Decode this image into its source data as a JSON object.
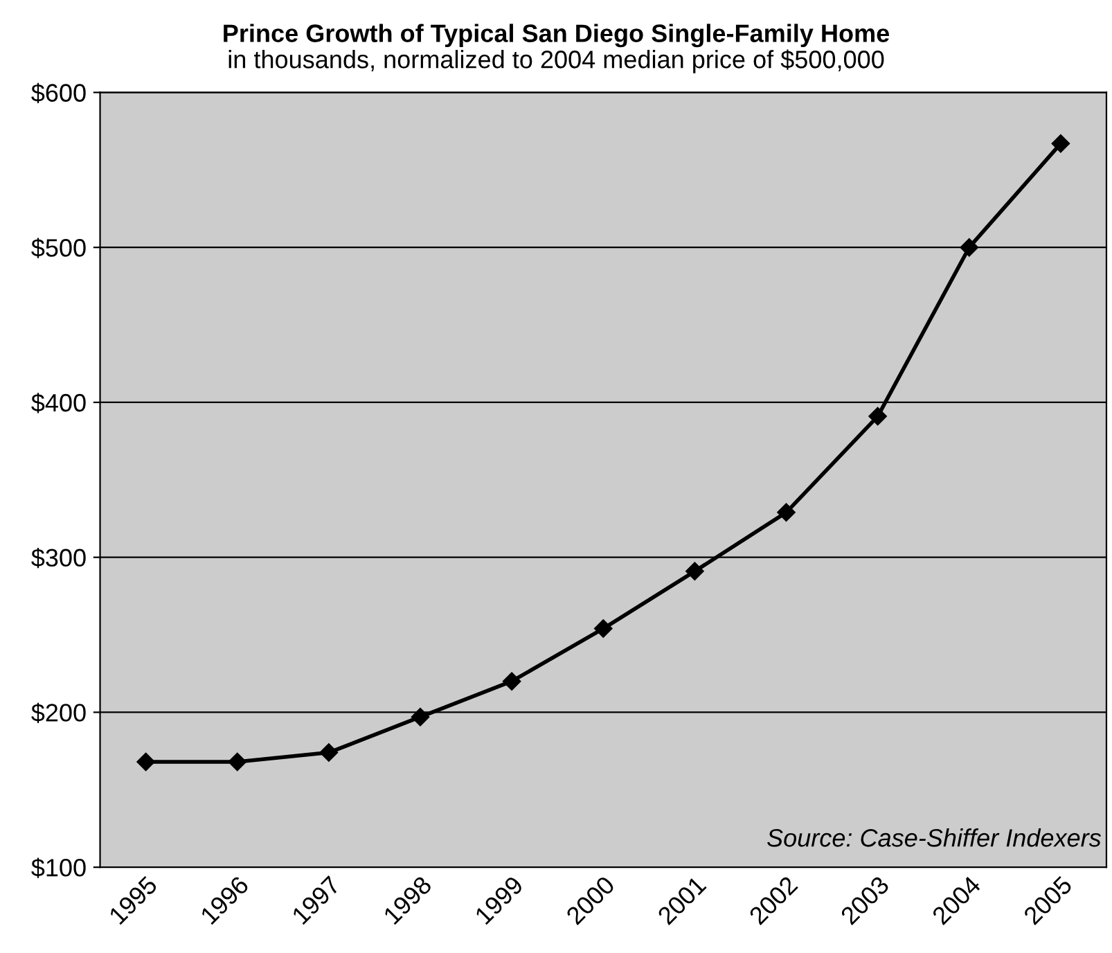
{
  "chart_data": {
    "type": "line",
    "title": "Prince Growth of Typical San Diego Single-Family Home",
    "subtitle": "in thousands, normalized to 2004 median price of $500,000",
    "categories": [
      "1995",
      "1996",
      "1997",
      "1998",
      "1999",
      "2000",
      "2001",
      "2002",
      "2003",
      "2004",
      "2005"
    ],
    "series": [
      {
        "color": "#000000",
        "values": [
          168,
          168,
          174,
          197,
          220,
          254,
          291,
          329,
          391,
          500,
          567
        ]
      }
    ],
    "ylim": [
      100,
      600
    ],
    "yticks": [
      {
        "value": 100,
        "label": "$100"
      },
      {
        "value": 200,
        "label": "$200"
      },
      {
        "value": 300,
        "label": "$300"
      },
      {
        "value": 400,
        "label": "$400"
      },
      {
        "value": 500,
        "label": "$500"
      },
      {
        "value": 600,
        "label": "$600"
      }
    ],
    "grid": "y",
    "marker": "diamond",
    "line_style": "solid",
    "legend": false,
    "annotations": [
      "Source: Case-Shiffer Indexers"
    ]
  }
}
